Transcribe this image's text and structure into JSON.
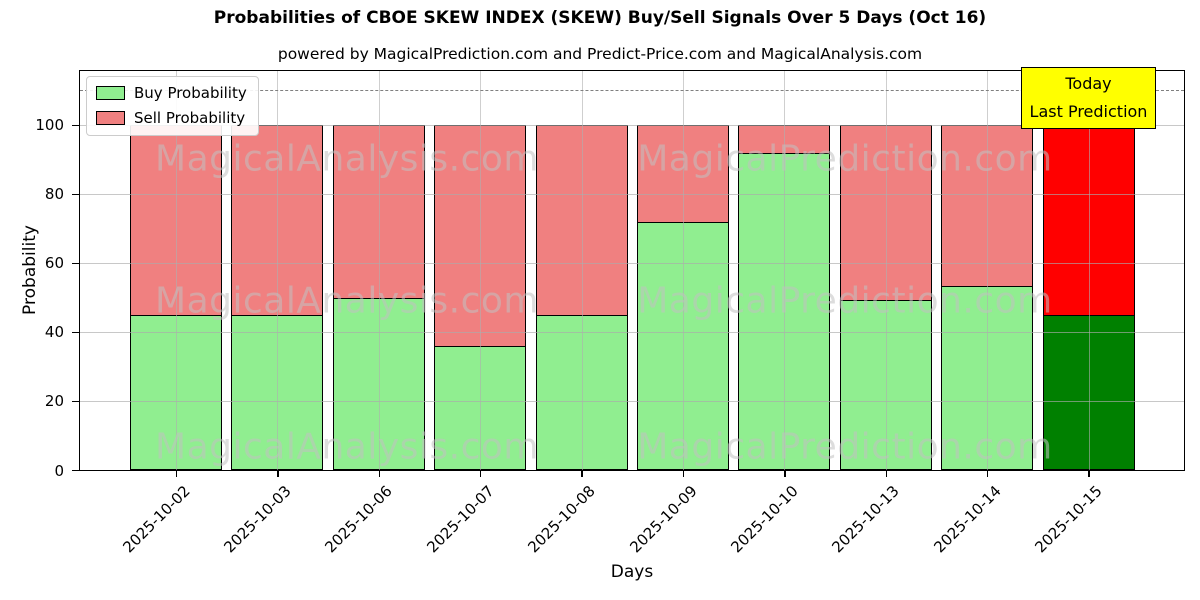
{
  "title": "Probabilities of CBOE SKEW INDEX (SKEW) Buy/Sell Signals Over 5 Days (Oct 16)",
  "subtitle": "powered by MagicalPrediction.com and Predict-Price.com and MagicalAnalysis.com",
  "watermarks": {
    "left": "MagicalAnalysis.com",
    "right": "MagicalPrediction.com"
  },
  "legend": {
    "items": [
      {
        "label": "Buy Probability",
        "color": "#90ee90"
      },
      {
        "label": "Sell Probability",
        "color": "#f08080"
      }
    ]
  },
  "annotation": {
    "line1": "Today",
    "line2": "Last Prediction",
    "bg": "#ffff00"
  },
  "chart_data": {
    "type": "bar",
    "stacked": true,
    "title": "Probabilities of CBOE SKEW INDEX (SKEW) Buy/Sell Signals Over 5 Days (Oct 16)",
    "xlabel": "Days",
    "ylabel": "Probability",
    "categories": [
      "2025-10-02",
      "2025-10-03",
      "2025-10-06",
      "2025-10-07",
      "2025-10-08",
      "2025-10-09",
      "2025-10-10",
      "2025-10-13",
      "2025-10-14",
      "2025-10-15"
    ],
    "series": [
      {
        "name": "Buy Probability",
        "color": "#90ee90",
        "last_bar_color": "#008000",
        "values": [
          45,
          45,
          50,
          36,
          45,
          72,
          92,
          49.5,
          53.5,
          45
        ]
      },
      {
        "name": "Sell Probability",
        "color": "#f08080",
        "last_bar_color": "#ff0000",
        "values": [
          55,
          55,
          50,
          64,
          55,
          28,
          8,
          50.5,
          46.5,
          55
        ]
      }
    ],
    "ylim": [
      0,
      115.6
    ],
    "yticks": [
      0,
      20,
      40,
      60,
      80,
      100
    ],
    "dashed_line_y": 110,
    "grid": true,
    "legend_position": "upper left",
    "gridline_color": "#aaaaaa",
    "dashed_line_color": "#7f7f7f"
  }
}
